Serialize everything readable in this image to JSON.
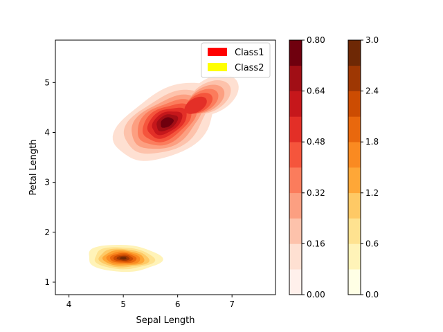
{
  "chart_data": {
    "type": "contour",
    "xlabel": "Sepal Length",
    "ylabel": "Petal Length",
    "xlim": [
      3.75,
      7.8
    ],
    "ylim": [
      0.75,
      5.85
    ],
    "xticks": [
      "4",
      "5",
      "6",
      "7"
    ],
    "yticks": [
      "1",
      "2",
      "3",
      "4",
      "5"
    ],
    "legend_position": "upper-right",
    "series": [
      {
        "name": "Class1",
        "legend_color": "#ff0000",
        "peak_density": 0.8,
        "center": [
          5.8,
          4.2
        ],
        "levels": [
          0.08,
          0.16,
          0.24,
          0.32,
          0.4,
          0.48,
          0.56,
          0.64,
          0.72
        ],
        "colors": [
          "#fee0d2",
          "#fdc2ab",
          "#fc9f81",
          "#fb7c5c",
          "#f5553c",
          "#e32f27",
          "#c6171b",
          "#a10e15",
          "#6f000e"
        ]
      },
      {
        "name": "Class2",
        "legend_color": "#ffff00",
        "peak_density": 2.9,
        "center": [
          5.0,
          1.48
        ],
        "levels": [
          0.3,
          0.6,
          0.9,
          1.2,
          1.5,
          1.8,
          2.1,
          2.4,
          2.7
        ],
        "colors": [
          "#fff3b8",
          "#fee290",
          "#fec965",
          "#fea737",
          "#fa8a21",
          "#e9680d",
          "#cc4c02",
          "#9e3703",
          "#6e2805"
        ]
      }
    ],
    "colorbars": [
      {
        "ticks": [
          "0.00",
          "0.16",
          "0.32",
          "0.48",
          "0.64",
          "0.80"
        ],
        "colors": [
          "#fff0eb",
          "#fee0d2",
          "#fdc2ab",
          "#fc9f81",
          "#fb7c5c",
          "#f5553c",
          "#e32f27",
          "#c6171b",
          "#a10e15",
          "#6f000e"
        ]
      },
      {
        "ticks": [
          "0.0",
          "0.6",
          "1.2",
          "1.8",
          "2.4",
          "3.0"
        ],
        "colors": [
          "#ffffe5",
          "#fff3b8",
          "#fee290",
          "#fec965",
          "#fea737",
          "#fa8a21",
          "#e9680d",
          "#cc4c02",
          "#9e3703",
          "#6e2805"
        ]
      }
    ]
  }
}
